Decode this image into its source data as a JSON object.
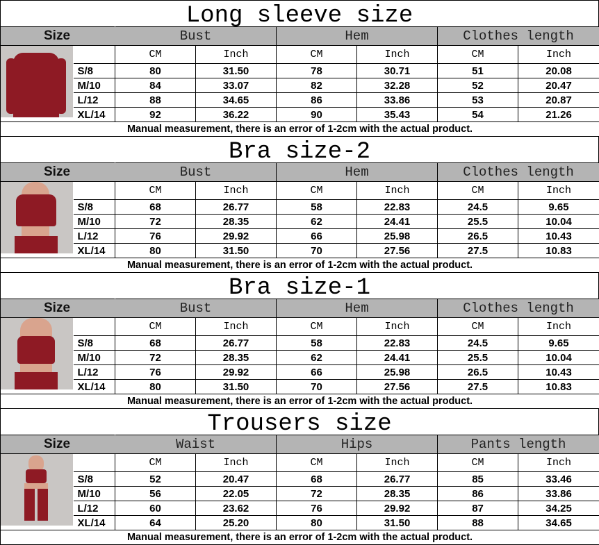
{
  "sections": [
    {
      "title": "Long sleeve size",
      "size_label": "Size",
      "columns": [
        "Bust",
        "Hem",
        "Clothes length"
      ],
      "units": [
        "CM",
        "Inch",
        "CM",
        "Inch",
        "CM",
        "Inch"
      ],
      "garment": "long-sleeve-jacket",
      "rows": [
        [
          "S/8",
          "80",
          "31.50",
          "78",
          "30.71",
          "51",
          "20.08"
        ],
        [
          "M/10",
          "84",
          "33.07",
          "82",
          "32.28",
          "52",
          "20.47"
        ],
        [
          "L/12",
          "88",
          "34.65",
          "86",
          "33.86",
          "53",
          "20.87"
        ],
        [
          "XL/14",
          "92",
          "36.22",
          "90",
          "35.43",
          "54",
          "21.26"
        ]
      ],
      "note": "Manual measurement, there is an error of 1-2cm with the actual product."
    },
    {
      "title": "Bra size-2",
      "size_label": "Size",
      "columns": [
        "Bust",
        "Hem",
        "Clothes length"
      ],
      "units": [
        "CM",
        "Inch",
        "CM",
        "Inch",
        "CM",
        "Inch"
      ],
      "garment": "high-neck-bra",
      "rows": [
        [
          "S/8",
          "68",
          "26.77",
          "58",
          "22.83",
          "24.5",
          "9.65"
        ],
        [
          "M/10",
          "72",
          "28.35",
          "62",
          "24.41",
          "25.5",
          "10.04"
        ],
        [
          "L/12",
          "76",
          "29.92",
          "66",
          "25.98",
          "26.5",
          "10.43"
        ],
        [
          "XL/14",
          "80",
          "31.50",
          "70",
          "27.56",
          "27.5",
          "10.83"
        ]
      ],
      "note": "Manual measurement, there is an error of 1-2cm with the actual product."
    },
    {
      "title": "Bra size-1",
      "size_label": "Size",
      "columns": [
        "Bust",
        "Hem",
        "Clothes length"
      ],
      "units": [
        "CM",
        "Inch",
        "CM",
        "Inch",
        "CM",
        "Inch"
      ],
      "garment": "strap-bra",
      "rows": [
        [
          "S/8",
          "68",
          "26.77",
          "58",
          "22.83",
          "24.5",
          "9.65"
        ],
        [
          "M/10",
          "72",
          "28.35",
          "62",
          "24.41",
          "25.5",
          "10.04"
        ],
        [
          "L/12",
          "76",
          "29.92",
          "66",
          "25.98",
          "26.5",
          "10.43"
        ],
        [
          "XL/14",
          "80",
          "31.50",
          "70",
          "27.56",
          "27.5",
          "10.83"
        ]
      ],
      "note": "Manual measurement, there is an error of 1-2cm with the actual product."
    },
    {
      "title": "Trousers size",
      "size_label": "Size",
      "columns": [
        "Waist",
        "Hips",
        "Pants length"
      ],
      "units": [
        "CM",
        "Inch",
        "CM",
        "Inch",
        "CM",
        "Inch"
      ],
      "garment": "leggings",
      "rows": [
        [
          "S/8",
          "52",
          "20.47",
          "68",
          "26.77",
          "85",
          "33.46"
        ],
        [
          "M/10",
          "56",
          "22.05",
          "72",
          "28.35",
          "86",
          "33.86"
        ],
        [
          "L/12",
          "60",
          "23.62",
          "76",
          "29.92",
          "87",
          "34.25"
        ],
        [
          "XL/14",
          "64",
          "25.20",
          "80",
          "31.50",
          "88",
          "34.65"
        ]
      ],
      "note": "Manual measurement, there is an error of 1-2cm with the actual product."
    }
  ],
  "colors": {
    "header_bg": "#b4b4b4",
    "garment": "#8e1a24",
    "photo_bg": "#c9c6c4"
  }
}
